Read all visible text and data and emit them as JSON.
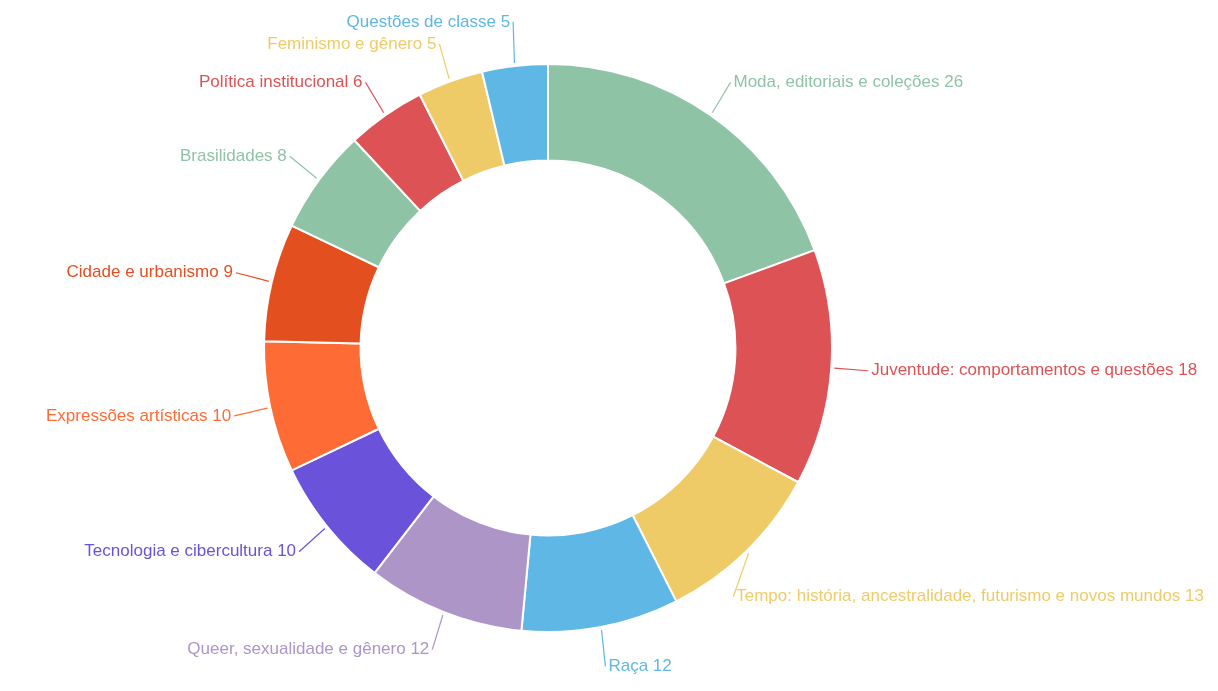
{
  "chart_data": {
    "type": "donut",
    "categories": [
      "Moda, editoriais e coleções",
      "Juventude: comportamentos e questões",
      "Tempo: história, ancestralidade, futurismo e novos mundos",
      "Raça",
      "Queer, sexualidade e gênero",
      "Tecnologia e cibercultura",
      "Expressões artísticas",
      "Cidade e urbanismo",
      "Brasilidades",
      "Política institucional",
      "Feminismo e gênero",
      "Questões de classe"
    ],
    "values": [
      26,
      18,
      13,
      12,
      12,
      10,
      10,
      9,
      8,
      6,
      5,
      5
    ],
    "colors": [
      "#8fc3a6",
      "#dd5255",
      "#efcb68",
      "#5fb7e5",
      "#ad95c8",
      "#6b52da",
      "#ff6b35",
      "#e44f20",
      "#8fc3a6",
      "#dd5255",
      "#efcb68",
      "#5fb7e5"
    ],
    "data_labels": true,
    "legend": false
  }
}
